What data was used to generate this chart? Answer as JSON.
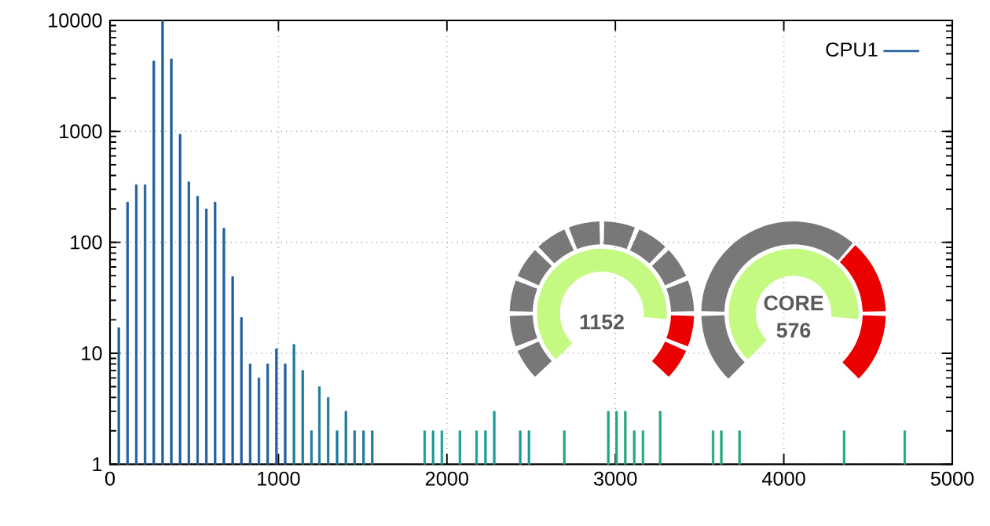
{
  "chart_data": {
    "type": "bar",
    "log": true,
    "grid": true,
    "legend": "top right",
    "xlim": [
      0,
      5000
    ],
    "ylim": [
      1,
      10000
    ],
    "xticks": [
      0,
      1000,
      2000,
      3000,
      4000,
      5000
    ],
    "yticks": [
      1,
      10,
      100,
      1000,
      10000
    ],
    "x": [
      52,
      104,
      156,
      208,
      260,
      312,
      364,
      416,
      468,
      520,
      572,
      624,
      676,
      728,
      780,
      832,
      884,
      936,
      988,
      1040,
      1092,
      1144,
      1196,
      1243,
      1295,
      1348,
      1400,
      1452,
      1505,
      1557,
      1868,
      1918,
      1970,
      2077,
      2176,
      2229,
      2281,
      2435,
      2487,
      2697,
      2958,
      3007,
      3059,
      3112,
      3164,
      3266,
      3580,
      3629,
      3737,
      4358,
      4718
    ],
    "series": [
      {
        "name": "CPU1",
        "color": "#1f5f9f",
        "values": [
          17,
          230,
          330,
          330,
          4300,
          10000,
          4500,
          940,
          350,
          260,
          200,
          230,
          134,
          49,
          21,
          8,
          6,
          8,
          11,
          8,
          12,
          7,
          2,
          5,
          4,
          2,
          3,
          2,
          2,
          2,
          2,
          2,
          2,
          2,
          2,
          2,
          3,
          2,
          2,
          2,
          3,
          3,
          3,
          2,
          2,
          3,
          2,
          2,
          2,
          2,
          2
        ],
        "colors": [
          "#1f5f9f",
          "#1f5f9f",
          "#1f5f9f",
          "#1f5f9f",
          "#1f5f9f",
          "#1f5f9f",
          "#1f5f9f",
          "#1f5f9f",
          "#1f5f9f",
          "#1f5f9f",
          "#1f5f9f",
          "#1f5f9f",
          "#1f5f9f",
          "#1f5f9f",
          "#1f5f9f",
          "#1f5f9f",
          "#1f5f9f",
          "#1f5f9f",
          "#1f5f9f",
          "#1f5f9f",
          "#1c7a9c",
          "#1c7a9c",
          "#1c7a9c",
          "#1c7a9c",
          "#1c7a9c",
          "#1c7a9c",
          "#1c7a9c",
          "#1c7a9c",
          "#1c7a9c",
          "#1c7a9c",
          "#1f9a9a",
          "#1f9a9a",
          "#1f9a9a",
          "#1f9a9a",
          "#1f9a9a",
          "#1f9a9a",
          "#1f9a9a",
          "#1f9a9a",
          "#1f9a9a",
          "#23a878",
          "#23a878",
          "#23a878",
          "#23a878",
          "#23a878",
          "#23a878",
          "#23a878",
          "#23a878",
          "#23a878",
          "#23a878",
          "#23a878",
          "#23a878"
        ]
      }
    ],
    "annotations": [
      "1152",
      "CORE",
      "576"
    ]
  }
}
